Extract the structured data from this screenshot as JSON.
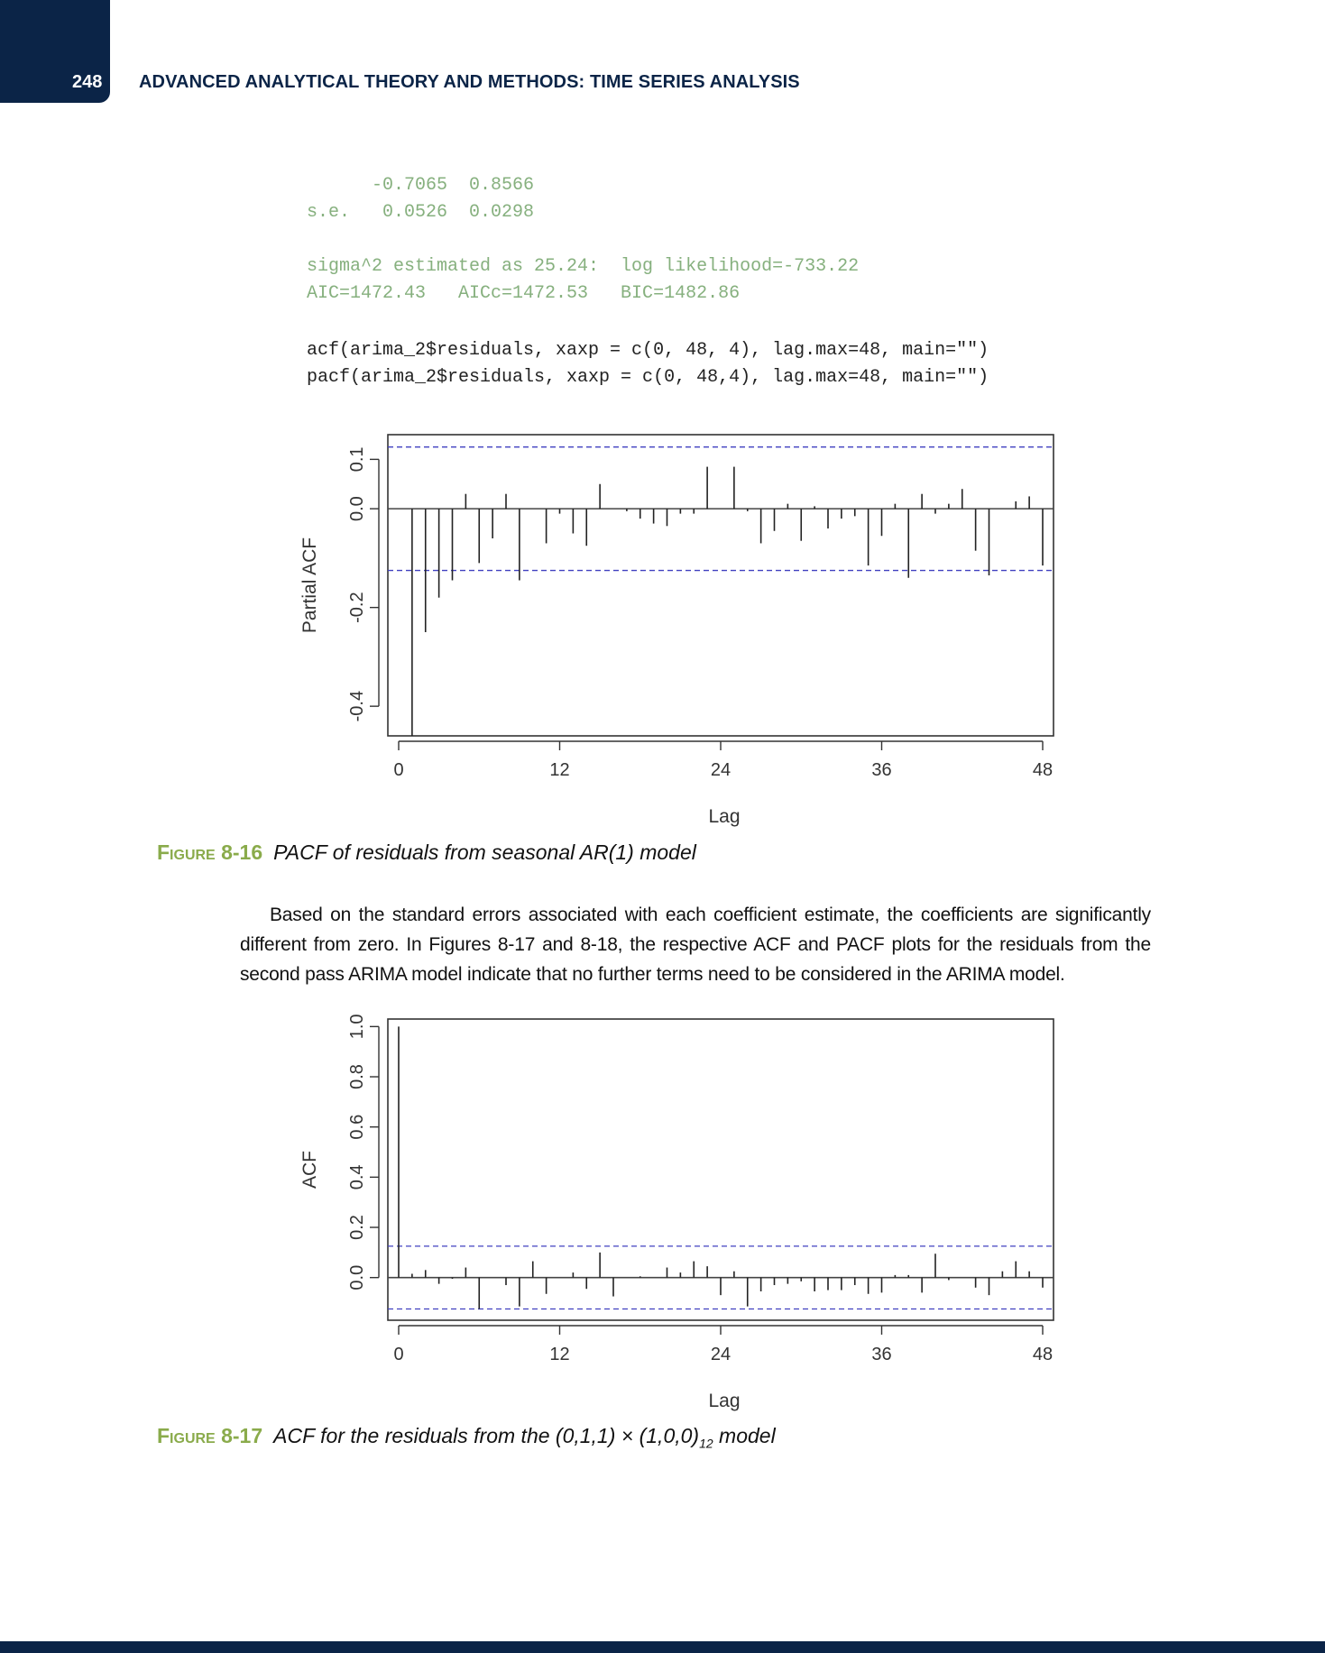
{
  "header": {
    "page_number": "248",
    "running_head": "ADVANCED ANALYTICAL THEORY AND METHODS: TIME SERIES ANALYSIS"
  },
  "code_output": {
    "lines": [
      "      -0.7065  0.8566",
      "s.e.   0.0526  0.0298",
      "",
      "sigma^2 estimated as 25.24:  log likelihood=-733.22",
      "AIC=1472.43   AICc=1472.53   BIC=1482.86"
    ]
  },
  "code_input": {
    "lines": [
      "acf(arima_2$residuals, xaxp = c(0, 48, 4), lag.max=48, main=\"\")",
      "pacf(arima_2$residuals, xaxp = c(0, 48,4), lag.max=48, main=\"\")"
    ]
  },
  "figure_16": {
    "label": "Figure 8-16",
    "caption": "PACF of residuals from seasonal AR(1) model"
  },
  "paragraph": "Based on the standard errors associated with each coefficient estimate, the coefficients are significantly different from zero. In Figures 8-17 and 8-18, the respective ACF and PACF plots for the residuals from the second pass ARIMA model indicate that no further terms need to be considered in the ARIMA model.",
  "figure_17": {
    "label": "Figure 8-17",
    "caption_main": "ACF for the residuals from the (0,1,1) × (1,0,0)",
    "caption_sub": "12",
    "caption_end": " model"
  },
  "colors": {
    "navy": "#0b2447",
    "code_green": "#86b07e",
    "caption_green": "#8aab4b",
    "ci_line": "#4040c0"
  },
  "chart_data": [
    {
      "type": "bar",
      "xlabel": "Lag",
      "ylabel": "Partial ACF",
      "xlim": [
        0,
        48
      ],
      "ylim": [
        -0.46,
        0.15
      ],
      "xticks": [
        0,
        12,
        24,
        36,
        48
      ],
      "yticks": [
        -0.4,
        -0.2,
        0.0,
        0.1
      ],
      "ytick_labels": [
        "-0.4",
        "-0.2",
        "0.0",
        "0.1"
      ],
      "confidence_bound": 0.125,
      "lags": [
        1,
        2,
        3,
        4,
        5,
        6,
        7,
        8,
        9,
        10,
        11,
        12,
        13,
        14,
        15,
        16,
        17,
        18,
        19,
        20,
        21,
        22,
        23,
        24,
        25,
        26,
        27,
        28,
        29,
        30,
        31,
        32,
        33,
        34,
        35,
        36,
        37,
        38,
        39,
        40,
        41,
        42,
        43,
        44,
        45,
        46,
        47,
        48
      ],
      "values": [
        -0.46,
        -0.25,
        -0.18,
        -0.145,
        0.03,
        -0.11,
        -0.06,
        0.03,
        -0.145,
        0.0,
        -0.07,
        -0.01,
        -0.05,
        -0.075,
        0.05,
        0.0,
        -0.005,
        -0.02,
        -0.03,
        -0.035,
        -0.01,
        -0.01,
        0.085,
        0.0,
        0.085,
        -0.005,
        -0.07,
        -0.045,
        0.01,
        -0.065,
        0.005,
        -0.04,
        -0.02,
        -0.015,
        -0.115,
        -0.055,
        0.01,
        -0.14,
        0.03,
        -0.01,
        0.01,
        0.04,
        -0.085,
        -0.135,
        0.0,
        0.015,
        0.025,
        -0.115
      ]
    },
    {
      "type": "bar",
      "xlabel": "Lag",
      "ylabel": "ACF",
      "xlim": [
        0,
        48
      ],
      "ylim": [
        -0.17,
        1.03
      ],
      "xticks": [
        0,
        12,
        24,
        36,
        48
      ],
      "yticks": [
        0.0,
        0.2,
        0.4,
        0.6,
        0.8,
        1.0
      ],
      "ytick_labels": [
        "0.0",
        "0.2",
        "0.4",
        "0.6",
        "0.8",
        "1.0"
      ],
      "confidence_bound": 0.125,
      "lags": [
        0,
        1,
        2,
        3,
        4,
        5,
        6,
        7,
        8,
        9,
        10,
        11,
        12,
        13,
        14,
        15,
        16,
        17,
        18,
        19,
        20,
        21,
        22,
        23,
        24,
        25,
        26,
        27,
        28,
        29,
        30,
        31,
        32,
        33,
        34,
        35,
        36,
        37,
        38,
        39,
        40,
        41,
        42,
        43,
        44,
        45,
        46,
        47,
        48
      ],
      "values": [
        1.0,
        0.015,
        0.03,
        -0.025,
        -0.005,
        0.04,
        -0.125,
        0.0,
        -0.03,
        -0.115,
        0.065,
        -0.065,
        0.0,
        0.02,
        -0.045,
        0.1,
        -0.075,
        0.0,
        0.005,
        0.0,
        0.04,
        0.02,
        0.065,
        0.045,
        -0.07,
        0.025,
        -0.115,
        -0.055,
        -0.03,
        -0.025,
        -0.015,
        -0.055,
        -0.05,
        -0.05,
        -0.03,
        -0.065,
        -0.06,
        0.01,
        0.01,
        -0.06,
        0.095,
        -0.01,
        0.0,
        -0.04,
        -0.07,
        0.025,
        0.065,
        0.025,
        -0.04
      ]
    }
  ]
}
